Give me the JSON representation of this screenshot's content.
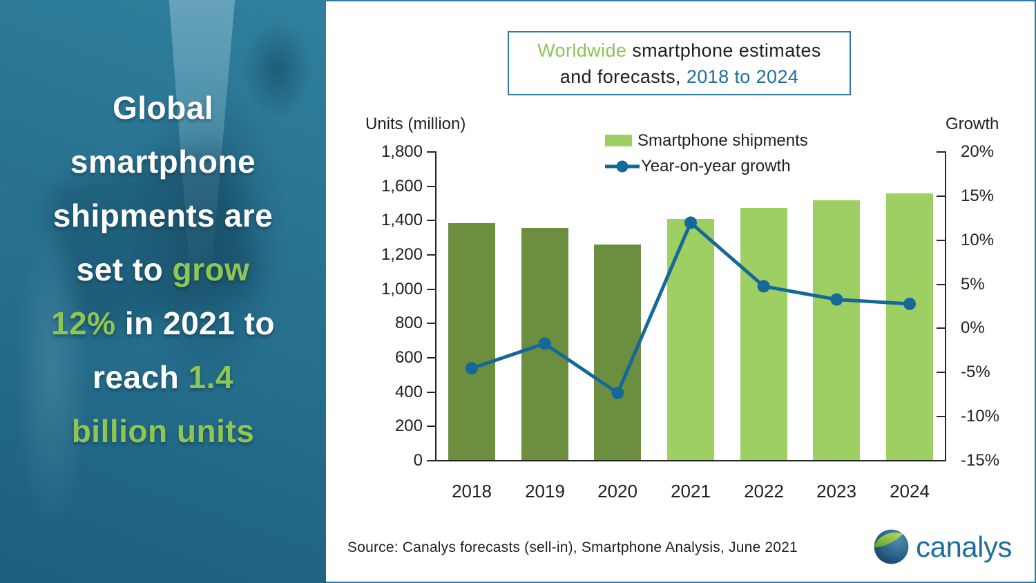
{
  "sidebar": {
    "headline": {
      "line1": {
        "seg1": "Global"
      },
      "line2": {
        "seg1": "smartphone"
      },
      "line3": {
        "seg1": "shipments are"
      },
      "line4": {
        "seg1": "set to ",
        "seg2": "grow"
      },
      "line5": {
        "seg1": "12%",
        "seg2": " in 2021 to"
      },
      "line6": {
        "seg1": "reach ",
        "seg2": "1.4"
      },
      "line7": {
        "seg1": "billion units"
      }
    }
  },
  "panel": {
    "title": {
      "part1": "Worldwide",
      "part2": " smartphone estimates",
      "line2_part1": "and forecasts, ",
      "line2_part2": "2018 to 2024"
    },
    "legend": {
      "bars": "Smartphone shipments",
      "line": "Year-on-year growth"
    },
    "left_axis_title": "Units (million)",
    "right_axis_title": "Growth",
    "source": "Source: Canalys forecasts (sell-in), Smartphone Analysis, June 2021",
    "logo_text": "canalys"
  },
  "chart_data": {
    "type": "bar+line",
    "title": "Worldwide smartphone estimates and forecasts, 2018 to 2024",
    "categories": [
      "2018",
      "2019",
      "2020",
      "2021",
      "2022",
      "2023",
      "2024"
    ],
    "series": [
      {
        "name": "Smartphone shipments",
        "type": "bar",
        "axis": "left",
        "values": [
          1380,
          1355,
          1255,
          1405,
          1470,
          1515,
          1555
        ],
        "phase": [
          "actual",
          "actual",
          "actual",
          "forecast",
          "forecast",
          "forecast",
          "forecast"
        ]
      },
      {
        "name": "Year-on-year growth",
        "type": "line",
        "axis": "right",
        "values": [
          -4.6,
          -1.8,
          -7.4,
          11.9,
          4.7,
          3.2,
          2.7
        ]
      }
    ],
    "left_axis": {
      "title": "Units (million)",
      "min": 0,
      "max": 1800,
      "step": 200
    },
    "right_axis": {
      "title": "Growth",
      "min": -15,
      "max": 20,
      "step": 5,
      "suffix": "%"
    },
    "legend_position": "top-center",
    "gridlines": false
  },
  "colors": {
    "bar_actual": "#6C8F3F",
    "bar_forecast": "#9DCF63",
    "line": "#15689A",
    "axis": "#262626",
    "title_green": "#8CC455",
    "title_blue": "#1F6E9E",
    "headline_green": "#8FC653",
    "panel_border": "#2B7CA7",
    "logo_blue": "#1C6F9F"
  }
}
